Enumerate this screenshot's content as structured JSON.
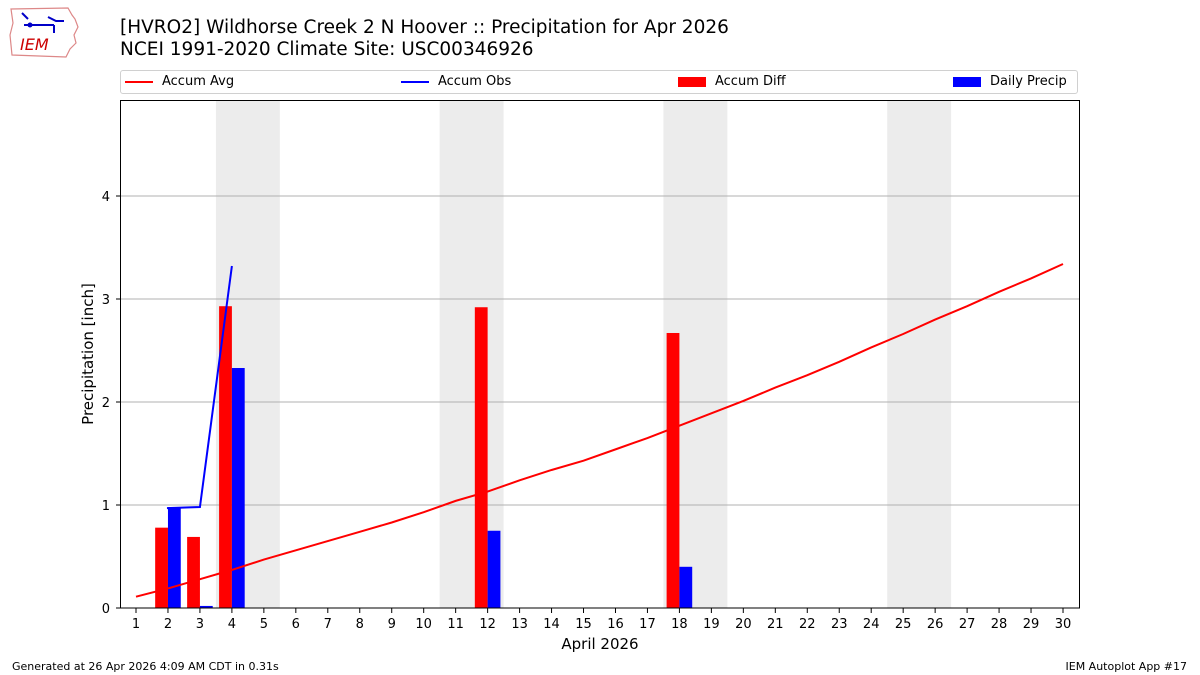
{
  "header": {
    "title_line1": "[HVRO2] Wildhorse Creek 2 N Hoover :: Precipitation for Apr 2026",
    "title_line2": "NCEI 1991-2020 Climate Site: USC00346926",
    "logo_text": "IEM"
  },
  "legend": [
    {
      "label": "Accum Avg",
      "type": "line",
      "color": "#ff0000"
    },
    {
      "label": "Accum Obs",
      "type": "line",
      "color": "#0000ff"
    },
    {
      "label": "Accum Diff",
      "type": "bar",
      "color": "#ff0000"
    },
    {
      "label": "Daily Precip",
      "type": "bar",
      "color": "#0000ff"
    }
  ],
  "footer": {
    "left": "Generated at 26 Apr 2026 4:09 AM CDT in 0.31s",
    "right": "IEM Autoplot App #17"
  },
  "chart_data": {
    "type": "bar",
    "title": "[HVRO2] Wildhorse Creek 2 N Hoover :: Precipitation for Apr 2026",
    "subtitle": "NCEI 1991-2020 Climate Site: USC00346926",
    "xlabel": "April 2026",
    "ylabel": "Precipitation [inch]",
    "xlim": [
      0.5,
      30.5
    ],
    "ylim": [
      0,
      4.95
    ],
    "yticks": [
      0,
      1,
      2,
      3,
      4
    ],
    "x": [
      1,
      2,
      3,
      4,
      5,
      6,
      7,
      8,
      9,
      10,
      11,
      12,
      13,
      14,
      15,
      16,
      17,
      18,
      19,
      20,
      21,
      22,
      23,
      24,
      25,
      26,
      27,
      28,
      29,
      30
    ],
    "grid": true,
    "legend_position": "top",
    "weekend_shading": [
      [
        4,
        5
      ],
      [
        11,
        12
      ],
      [
        18,
        19
      ],
      [
        25,
        26
      ]
    ],
    "series": [
      {
        "name": "Accum Avg",
        "type": "line",
        "color": "#ff0000",
        "x": [
          1,
          2,
          3,
          4,
          5,
          6,
          7,
          8,
          9,
          10,
          11,
          12,
          13,
          14,
          15,
          16,
          17,
          18,
          19,
          20,
          21,
          22,
          23,
          24,
          25,
          26,
          27,
          28,
          29,
          30
        ],
        "values": [
          0.11,
          0.19,
          0.28,
          0.37,
          0.47,
          0.56,
          0.65,
          0.74,
          0.83,
          0.93,
          1.04,
          1.13,
          1.24,
          1.34,
          1.43,
          1.54,
          1.65,
          1.77,
          1.89,
          2.01,
          2.14,
          2.26,
          2.39,
          2.53,
          2.66,
          2.8,
          2.93,
          3.07,
          3.2,
          3.34
        ]
      },
      {
        "name": "Accum Obs",
        "type": "line",
        "color": "#0000ff",
        "x": [
          2,
          3,
          4
        ],
        "values": [
          0.97,
          0.98,
          3.32
        ]
      },
      {
        "name": "Accum Diff",
        "type": "bar",
        "color": "#ff0000",
        "x": [
          2,
          3,
          4,
          12,
          18
        ],
        "values": [
          0.78,
          0.69,
          2.93,
          2.92,
          2.67
        ]
      },
      {
        "name": "Daily Precip",
        "type": "bar",
        "color": "#0000ff",
        "x": [
          2,
          3,
          4,
          12,
          18
        ],
        "values": [
          0.98,
          0.02,
          2.33,
          0.75,
          0.4
        ]
      }
    ]
  }
}
